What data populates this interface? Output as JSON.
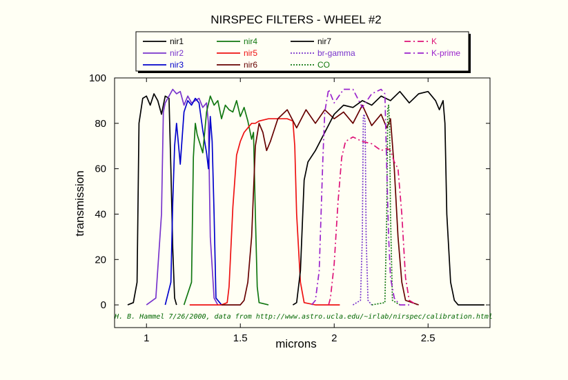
{
  "chart_data": {
    "type": "line",
    "title": "NIRSPEC FILTERS - WHEEL #2",
    "xlabel": "microns",
    "ylabel": "transmission",
    "xlim": [
      0.83,
      2.83
    ],
    "ylim": [
      -10,
      100
    ],
    "xticks": [
      1,
      1.5,
      2,
      2.5
    ],
    "xtick_labels": [
      "1",
      "1.5",
      "2",
      "2.5"
    ],
    "yticks": [
      0,
      20,
      40,
      60,
      80,
      100
    ],
    "ytick_labels": [
      "0",
      "20",
      "40",
      "60",
      "80",
      "100"
    ],
    "grid": false,
    "legend_position": "top, framed box above plot",
    "annotation": "H. B. Hammel 7/26/2000, data from http://www.astro.ucla.edu/~irlab/nirspec/calibration.html",
    "series": [
      {
        "name": "nir1",
        "color": "#000000",
        "dash": "solid",
        "x": [
          0.9,
          0.93,
          0.95,
          0.96,
          0.98,
          1.0,
          1.02,
          1.04,
          1.06,
          1.08,
          1.1,
          1.12,
          1.13,
          1.14,
          1.15,
          1.16
        ],
        "y": [
          0,
          1,
          10,
          80,
          91,
          92,
          88,
          93,
          90,
          84,
          92,
          91,
          60,
          25,
          3,
          0
        ]
      },
      {
        "name": "nir2",
        "color": "#7733cc",
        "dash": "solid",
        "x": [
          1.0,
          1.05,
          1.08,
          1.09,
          1.1,
          1.12,
          1.14,
          1.16,
          1.18,
          1.2,
          1.22,
          1.24,
          1.26,
          1.28,
          1.3,
          1.32,
          1.33,
          1.34,
          1.36,
          1.38
        ],
        "y": [
          0,
          3,
          40,
          85,
          89,
          92,
          95,
          93,
          94,
          88,
          92,
          89,
          90,
          91,
          87,
          89,
          80,
          30,
          3,
          0
        ]
      },
      {
        "name": "nir3",
        "color": "#0000cc",
        "dash": "solid",
        "x": [
          1.1,
          1.13,
          1.14,
          1.15,
          1.16,
          1.18,
          1.2,
          1.22,
          1.24,
          1.26,
          1.28,
          1.3,
          1.32,
          1.33,
          1.34,
          1.35,
          1.36,
          1.37,
          1.4
        ],
        "y": [
          0,
          10,
          45,
          70,
          80,
          62,
          85,
          90,
          88,
          91,
          89,
          77,
          67,
          60,
          83,
          72,
          40,
          3,
          0
        ]
      },
      {
        "name": "nir4",
        "color": "#117711",
        "dash": "solid",
        "x": [
          1.2,
          1.24,
          1.25,
          1.26,
          1.27,
          1.3,
          1.32,
          1.34,
          1.36,
          1.38,
          1.4,
          1.42,
          1.44,
          1.46,
          1.48,
          1.5,
          1.52,
          1.54,
          1.56,
          1.57,
          1.58,
          1.59,
          1.6,
          1.65
        ],
        "y": [
          0,
          10,
          65,
          80,
          75,
          67,
          85,
          92,
          88,
          90,
          82,
          88,
          86,
          85,
          90,
          83,
          87,
          81,
          73,
          76,
          40,
          8,
          1,
          0
        ]
      },
      {
        "name": "nir5",
        "color": "#ee1111",
        "dash": "solid",
        "x": [
          1.23,
          1.4,
          1.43,
          1.44,
          1.46,
          1.48,
          1.5,
          1.52,
          1.54,
          1.56,
          1.58,
          1.6,
          1.65,
          1.7,
          1.75,
          1.78,
          1.79,
          1.8,
          1.82,
          1.84,
          1.9,
          2.03
        ],
        "y": [
          0,
          0,
          1,
          8,
          43,
          66,
          72,
          76,
          78,
          80,
          80,
          81,
          82,
          82,
          82,
          81,
          70,
          40,
          10,
          1,
          0,
          0
        ]
      },
      {
        "name": "nir6",
        "color": "#660000",
        "dash": "solid",
        "x": [
          1.4,
          1.5,
          1.52,
          1.54,
          1.56,
          1.58,
          1.6,
          1.62,
          1.64,
          1.66,
          1.7,
          1.75,
          1.8,
          1.85,
          1.9,
          1.95,
          2.0,
          2.05,
          2.1,
          2.15,
          2.2,
          2.25,
          2.28,
          2.3,
          2.32,
          2.34,
          2.36,
          2.38,
          2.45
        ],
        "y": [
          0,
          0,
          2,
          10,
          30,
          70,
          80,
          76,
          68,
          72,
          82,
          86,
          78,
          86,
          80,
          86,
          82,
          85,
          80,
          88,
          79,
          84,
          78,
          82,
          60,
          30,
          10,
          2,
          0
        ]
      },
      {
        "name": "nir7",
        "color": "#000000",
        "dash": "solid",
        "x": [
          1.78,
          1.8,
          1.82,
          1.84,
          1.86,
          1.9,
          1.95,
          2.0,
          2.05,
          2.1,
          2.15,
          2.2,
          2.25,
          2.3,
          2.35,
          2.4,
          2.45,
          2.5,
          2.54,
          2.56,
          2.58,
          2.59,
          2.6,
          2.62,
          2.64,
          2.66,
          2.7,
          2.8
        ],
        "y": [
          0,
          1,
          15,
          55,
          63,
          68,
          76,
          84,
          88,
          87,
          90,
          88,
          92,
          90,
          94,
          89,
          93,
          94,
          90,
          86,
          90,
          80,
          40,
          10,
          2,
          0,
          0,
          0
        ]
      },
      {
        "name": "br-gamma",
        "color": "#7733cc",
        "dash": "dot",
        "x": [
          2.1,
          2.14,
          2.15,
          2.155,
          2.16,
          2.165,
          2.17,
          2.18,
          2.2
        ],
        "y": [
          0,
          2,
          30,
          83,
          84,
          80,
          30,
          2,
          0
        ]
      },
      {
        "name": "CO",
        "color": "#117711",
        "dash": "dot",
        "x": [
          2.2,
          2.27,
          2.28,
          2.285,
          2.29,
          2.295,
          2.3,
          2.31,
          2.35
        ],
        "y": [
          0,
          1,
          40,
          86,
          88,
          80,
          40,
          2,
          0
        ]
      },
      {
        "name": "K",
        "color": "#dd1177",
        "dash": "dashdot",
        "x": [
          1.97,
          1.98,
          2.0,
          2.02,
          2.04,
          2.06,
          2.08,
          2.1,
          2.15,
          2.2,
          2.25,
          2.28,
          2.3,
          2.32,
          2.34,
          2.36,
          2.38,
          2.4,
          2.44
        ],
        "y": [
          0,
          3,
          18,
          45,
          65,
          72,
          73,
          74,
          72,
          71,
          68,
          69,
          68,
          63,
          60,
          40,
          12,
          2,
          0
        ]
      },
      {
        "name": "K-prime",
        "color": "#9922cc",
        "dash": "dashdot",
        "x": [
          1.88,
          1.9,
          1.92,
          1.94,
          1.95,
          1.97,
          2.0,
          2.05,
          2.1,
          2.15,
          2.2,
          2.25,
          2.27,
          2.28,
          2.29,
          2.3,
          2.32,
          2.35,
          2.4
        ],
        "y": [
          0,
          2,
          15,
          65,
          85,
          95,
          89,
          95,
          95,
          87,
          93,
          95,
          93,
          60,
          30,
          12,
          3,
          0,
          0
        ]
      }
    ]
  }
}
